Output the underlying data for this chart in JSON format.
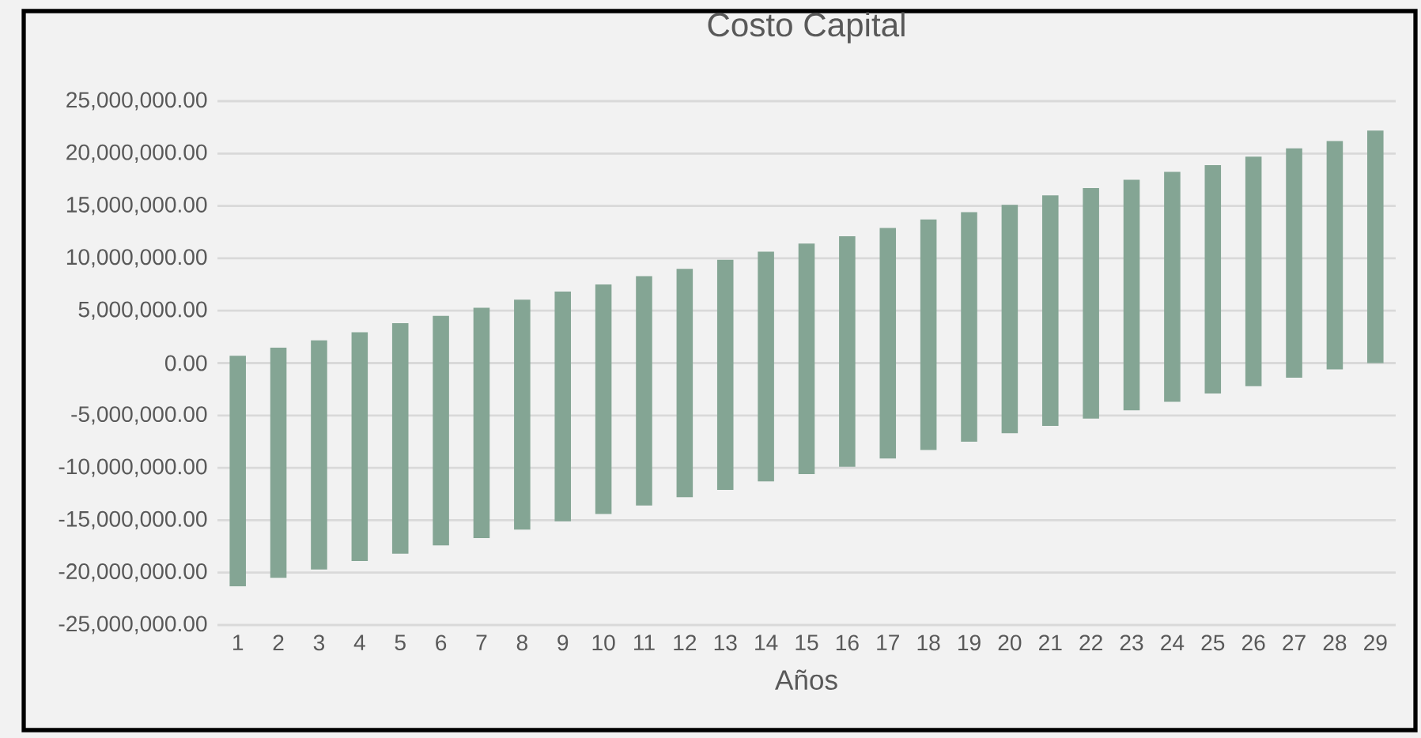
{
  "chart_data": {
    "type": "bar",
    "title": "Costo Capital",
    "xlabel": "Años",
    "categories": [
      "1",
      "2",
      "3",
      "4",
      "5",
      "6",
      "7",
      "8",
      "9",
      "10",
      "11",
      "12",
      "13",
      "14",
      "15",
      "16",
      "17",
      "18",
      "19",
      "20",
      "21",
      "22",
      "23",
      "24",
      "25",
      "26",
      "27",
      "28",
      "29"
    ],
    "base": [
      -21300000,
      -20500000,
      -19700000,
      -18900000,
      -18200000,
      -17400000,
      -16700000,
      -15900000,
      -15100000,
      -14400000,
      -13600000,
      -12800000,
      -12100000,
      -11300000,
      -10600000,
      -9900000,
      -9100000,
      -8300000,
      -7500000,
      -6700000,
      -6000000,
      -5300000,
      -4500000,
      -3700000,
      -2900000,
      -2200000,
      -1400000,
      -600000,
      0
    ],
    "values": [
      22000000,
      21970000,
      21860000,
      21840000,
      22000000,
      21900000,
      21980000,
      21960000,
      21930000,
      21900000,
      21900000,
      21800000,
      21960000,
      21940000,
      22000000,
      22000000,
      22000000,
      22000000,
      21900000,
      21800000,
      22000000,
      22000000,
      22000000,
      21950000,
      21800000,
      21900000,
      21900000,
      21800000,
      22200000
    ],
    "color": "#84a594",
    "ylim": [
      -25000000,
      25000000
    ],
    "yticks": [
      {
        "value": -25000000,
        "label": "-25,000,000.00"
      },
      {
        "value": -20000000,
        "label": "-20,000,000.00"
      },
      {
        "value": -15000000,
        "label": "-15,000,000.00"
      },
      {
        "value": -10000000,
        "label": "-10,000,000.00"
      },
      {
        "value": -5000000,
        "label": "-5,000,000.00"
      },
      {
        "value": 0,
        "label": "0.00"
      },
      {
        "value": 5000000,
        "label": "5,000,000.00"
      },
      {
        "value": 10000000,
        "label": "10,000,000.00"
      },
      {
        "value": 15000000,
        "label": "15,000,000.00"
      },
      {
        "value": 20000000,
        "label": "20,000,000.00"
      },
      {
        "value": 25000000,
        "label": "25,000,000.00"
      }
    ],
    "grid": "y"
  }
}
